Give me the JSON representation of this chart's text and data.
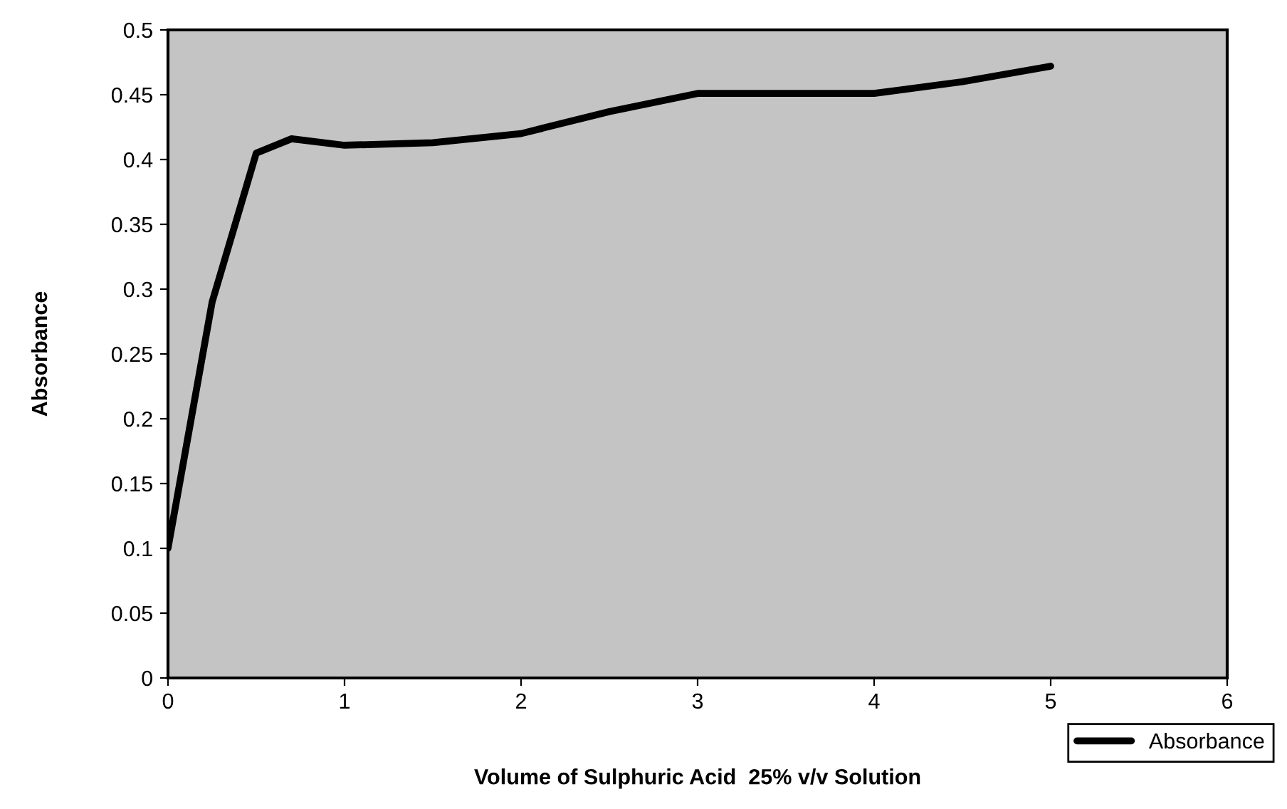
{
  "chart_data": {
    "type": "line",
    "xlabel": "Volume of Sulphuric Acid  25% v/v Solution",
    "ylabel": "Absorbance",
    "x": [
      0,
      0.25,
      0.5,
      0.7,
      1,
      1.5,
      2,
      2.5,
      3,
      3.5,
      4,
      4.5,
      5
    ],
    "series": [
      {
        "name": "Absorbance",
        "color": "#000000",
        "values": [
          0.1,
          0.29,
          0.405,
          0.416,
          0.411,
          0.413,
          0.42,
          0.437,
          0.451,
          0.451,
          0.451,
          0.46,
          0.472
        ]
      }
    ],
    "xlim": [
      0,
      6
    ],
    "xticks": [
      0,
      1,
      2,
      3,
      4,
      5,
      6
    ],
    "ylim": [
      0,
      0.5
    ],
    "yticks": [
      0,
      0.05,
      0.1,
      0.15,
      0.2,
      0.25,
      0.3,
      0.35,
      0.4,
      0.45,
      0.5
    ],
    "legend": "bottom right",
    "marker": "none",
    "line_style": "solid",
    "grid": false
  }
}
